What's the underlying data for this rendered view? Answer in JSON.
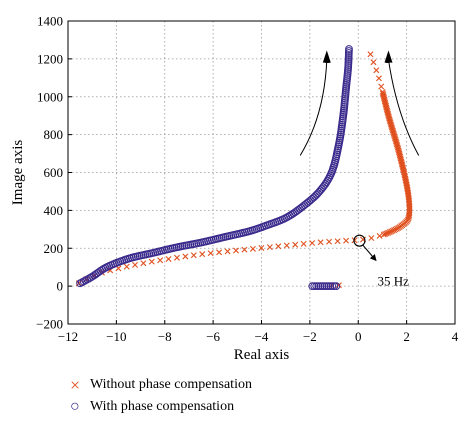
{
  "chart_data": {
    "type": "scatter",
    "xlabel": "Real axis",
    "ylabel": "Image axis",
    "xlim": [
      -12,
      4
    ],
    "ylim": [
      -200,
      1400
    ],
    "xticks": [
      -12,
      -10,
      -8,
      -6,
      -4,
      -2,
      0,
      2,
      4
    ],
    "yticks": [
      -200,
      0,
      200,
      400,
      600,
      800,
      1000,
      1200,
      1400
    ],
    "xtick_labels": [
      "−12",
      "−10",
      "−8",
      "−6",
      "−4",
      "−2",
      "0",
      "2",
      "4"
    ],
    "ytick_labels": [
      "−200",
      "0",
      "200",
      "400",
      "600",
      "800",
      "1000",
      "1200",
      "1400"
    ],
    "grid": true,
    "annotation": {
      "text": "35 Hz",
      "x": 0.05,
      "y": 240
    },
    "series": [
      {
        "name": "Without phase compensation",
        "marker": "x",
        "color": "#e0501e",
        "points": [
          [
            -11.55,
            15
          ],
          [
            -11.2,
            40
          ],
          [
            -10.5,
            75
          ],
          [
            -9.5,
            105
          ],
          [
            -8.5,
            130
          ],
          [
            -7.5,
            150
          ],
          [
            -6.5,
            168
          ],
          [
            -5.5,
            182
          ],
          [
            -4.5,
            195
          ],
          [
            -3.5,
            208
          ],
          [
            -2.5,
            220
          ],
          [
            -1.5,
            232
          ],
          [
            -0.5,
            240
          ],
          [
            0.2,
            246
          ],
          [
            0.8,
            262
          ],
          [
            1.3,
            285
          ],
          [
            1.8,
            320
          ],
          [
            2.1,
            370
          ],
          [
            2.05,
            500
          ],
          [
            1.7,
            700
          ],
          [
            1.25,
            900
          ],
          [
            0.85,
            1100
          ],
          [
            0.4,
            1260
          ]
        ],
        "branch_points": [
          [
            -0.8,
            5
          ],
          [
            -1.1,
            5
          ]
        ]
      },
      {
        "name": "With phase compensation",
        "marker": "o",
        "color": "#3a2a8c",
        "points": [
          [
            -11.5,
            15
          ],
          [
            -11.0,
            50
          ],
          [
            -10.4,
            100
          ],
          [
            -9.5,
            145
          ],
          [
            -8.5,
            175
          ],
          [
            -7.5,
            205
          ],
          [
            -6.5,
            230
          ],
          [
            -5.5,
            260
          ],
          [
            -4.5,
            290
          ],
          [
            -3.8,
            320
          ],
          [
            -3.0,
            360
          ],
          [
            -2.3,
            420
          ],
          [
            -1.6,
            500
          ],
          [
            -1.1,
            600
          ],
          [
            -0.8,
            750
          ],
          [
            -0.62,
            900
          ],
          [
            -0.5,
            1050
          ],
          [
            -0.42,
            1150
          ],
          [
            -0.38,
            1260
          ]
        ],
        "branch_points": [
          [
            -1.9,
            0
          ],
          [
            -0.9,
            0
          ]
        ]
      }
    ]
  },
  "legend": {
    "items": [
      {
        "symbol": "×",
        "label": "Without phase compensation",
        "color": "#e0501e"
      },
      {
        "symbol": "○",
        "label": "With phase compensation",
        "color": "#3a2a8c"
      }
    ]
  }
}
